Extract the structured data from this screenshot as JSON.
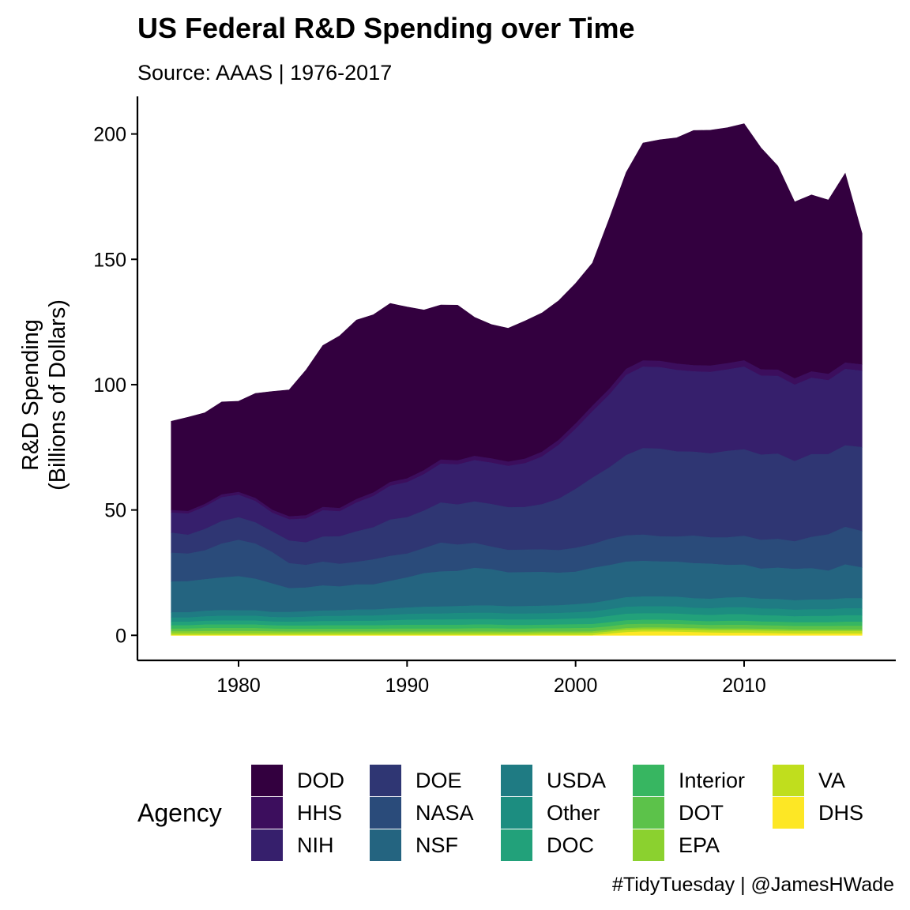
{
  "chart_data": {
    "type": "area",
    "stacked": true,
    "title": "US Federal R&D Spending over Time",
    "subtitle": "Source: AAAS | 1976-2017",
    "xlabel": "",
    "ylabel_lines": [
      "R&D Spending",
      "(Billions of Dollars)"
    ],
    "caption": "#TidyTuesday | @JamesHWade",
    "legend_title": "Agency",
    "legend_position": "bottom",
    "grid": false,
    "xlim": [
      1974.0,
      2019.0
    ],
    "ylim": [
      -10,
      215
    ],
    "x_ticks": [
      1980,
      1990,
      2000,
      2010
    ],
    "y_ticks": [
      0,
      50,
      100,
      150,
      200
    ],
    "x": [
      1976,
      1977,
      1978,
      1979,
      1980,
      1981,
      1982,
      1983,
      1984,
      1985,
      1986,
      1987,
      1988,
      1989,
      1990,
      1991,
      1992,
      1993,
      1994,
      1995,
      1996,
      1997,
      1998,
      1999,
      2000,
      2001,
      2002,
      2003,
      2004,
      2005,
      2006,
      2007,
      2008,
      2009,
      2010,
      2011,
      2012,
      2013,
      2014,
      2015,
      2016,
      2017
    ],
    "series": [
      {
        "name": "DOD",
        "color": "#33003F",
        "values": [
          35.5,
          37.5,
          36.5,
          37.0,
          36.3,
          41.8,
          47.3,
          50.5,
          58.0,
          64.5,
          68.8,
          71.5,
          71.0,
          71.3,
          68.5,
          64.0,
          61.8,
          62.0,
          55.4,
          53.5,
          53.3,
          55.0,
          55.5,
          55.6,
          56.0,
          57.0,
          68.0,
          78.5,
          86.8,
          88.3,
          90.2,
          93.7,
          94.0,
          94.0,
          94.5,
          88.5,
          81.3,
          70.5,
          70.5,
          69.5,
          75.6,
          52.3
        ]
      },
      {
        "name": "HHS",
        "color": "#3C0E5D",
        "values": [
          1.0,
          1.0,
          1.0,
          1.1,
          1.1,
          1.2,
          1.2,
          1.2,
          1.3,
          1.3,
          1.3,
          1.4,
          1.4,
          1.5,
          1.5,
          1.6,
          1.6,
          1.6,
          1.7,
          1.7,
          1.7,
          1.8,
          1.9,
          2.0,
          2.1,
          2.2,
          2.3,
          2.4,
          2.5,
          2.5,
          2.5,
          2.5,
          2.5,
          2.5,
          2.5,
          2.5,
          2.5,
          2.5,
          2.5,
          2.5,
          2.5,
          2.5
        ]
      },
      {
        "name": "NIH",
        "color": "#361F6C",
        "values": [
          8.0,
          8.5,
          9.0,
          9.5,
          9.0,
          8.5,
          7.5,
          8.5,
          9.5,
          10.5,
          10.0,
          11.5,
          12.5,
          13.5,
          14.0,
          14.5,
          15.5,
          16.0,
          16.5,
          16.5,
          16.5,
          17.5,
          19.0,
          21.5,
          24.0,
          26.5,
          29.0,
          32.0,
          32.5,
          32.5,
          32.5,
          32.0,
          32.5,
          32.5,
          33.0,
          31.5,
          31.0,
          30.5,
          30.5,
          29.5,
          30.5,
          30.5
        ]
      },
      {
        "name": "DOE",
        "color": "#2F3673",
        "values": [
          8.0,
          7.5,
          8.5,
          9.0,
          9.0,
          8.5,
          8.2,
          9.0,
          9.0,
          10.0,
          11.0,
          12.2,
          12.8,
          14.5,
          14.5,
          15.0,
          16.0,
          16.0,
          16.5,
          17.0,
          17.0,
          17.0,
          18.0,
          20.5,
          23.5,
          26.5,
          28.5,
          32.0,
          34.5,
          35.0,
          34.0,
          33.5,
          33.5,
          34.5,
          34.5,
          34.0,
          34.0,
          32.0,
          33.0,
          32.0,
          32.5,
          33.5
        ]
      },
      {
        "name": "NASA",
        "color": "#2A4B7A",
        "values": [
          11.5,
          11.0,
          11.5,
          13.5,
          14.5,
          14.0,
          12.5,
          10.0,
          9.0,
          9.5,
          9.0,
          9.0,
          10.0,
          10.0,
          9.5,
          10.0,
          11.5,
          10.5,
          10.0,
          9.0,
          9.0,
          9.0,
          9.0,
          9.0,
          9.5,
          9.5,
          10.5,
          10.5,
          10.5,
          10.0,
          10.0,
          11.0,
          10.5,
          11.0,
          11.5,
          11.5,
          11.5,
          11.0,
          12.5,
          14.5,
          15.0,
          14.5
        ]
      },
      {
        "name": "NSF",
        "color": "#246480",
        "values": [
          12.3,
          12.4,
          12.6,
          13.0,
          13.6,
          12.6,
          11.4,
          9.5,
          9.5,
          10.0,
          9.5,
          10.0,
          10.0,
          11.0,
          12.0,
          13.4,
          14.0,
          14.0,
          15.0,
          14.5,
          13.5,
          13.5,
          13.5,
          13.0,
          13.0,
          14.0,
          14.0,
          14.2,
          14.2,
          14.0,
          14.0,
          14.0,
          14.0,
          13.0,
          13.0,
          12.0,
          12.5,
          12.5,
          12.5,
          11.5,
          13.5,
          12.3
        ]
      },
      {
        "name": "USDA",
        "color": "#1F7B83",
        "values": [
          2.1,
          2.1,
          2.2,
          2.3,
          2.2,
          2.2,
          2.0,
          2.1,
          2.2,
          2.2,
          2.3,
          2.4,
          2.4,
          2.5,
          2.6,
          2.7,
          2.8,
          2.8,
          2.9,
          2.9,
          2.9,
          3.0,
          3.0,
          3.1,
          3.2,
          3.4,
          3.6,
          3.8,
          3.9,
          3.9,
          3.9,
          3.8,
          3.8,
          3.9,
          4.0,
          3.9,
          3.9,
          3.8,
          3.9,
          3.9,
          4.0,
          4.0
        ]
      },
      {
        "name": "Other",
        "color": "#1C8D80",
        "values": [
          1.7,
          1.7,
          1.8,
          1.9,
          1.9,
          1.9,
          1.8,
          1.8,
          1.9,
          2.0,
          2.0,
          2.1,
          2.1,
          2.2,
          2.3,
          2.4,
          2.4,
          2.5,
          2.5,
          2.5,
          2.4,
          2.4,
          2.4,
          2.4,
          2.5,
          2.6,
          2.7,
          2.8,
          2.8,
          2.8,
          2.8,
          2.7,
          2.7,
          2.8,
          2.8,
          2.7,
          2.7,
          2.6,
          2.7,
          2.7,
          2.8,
          2.8
        ]
      },
      {
        "name": "DOC",
        "color": "#22A17A",
        "values": [
          1.4,
          1.4,
          1.5,
          1.6,
          1.6,
          1.6,
          1.5,
          1.5,
          1.6,
          1.7,
          1.7,
          1.8,
          1.8,
          1.9,
          2.0,
          2.1,
          2.1,
          2.2,
          2.2,
          2.2,
          2.2,
          2.2,
          2.2,
          2.2,
          2.3,
          2.4,
          2.5,
          2.6,
          2.6,
          2.6,
          2.6,
          2.5,
          2.5,
          2.6,
          2.6,
          2.5,
          2.5,
          2.4,
          2.5,
          2.5,
          2.6,
          2.6
        ]
      },
      {
        "name": "Interior",
        "color": "#37B661",
        "values": [
          1.3,
          1.3,
          1.4,
          1.4,
          1.4,
          1.4,
          1.3,
          1.3,
          1.3,
          1.4,
          1.4,
          1.4,
          1.4,
          1.4,
          1.5,
          1.5,
          1.5,
          1.5,
          1.5,
          1.5,
          1.4,
          1.4,
          1.4,
          1.5,
          1.5,
          1.5,
          1.6,
          1.6,
          1.6,
          1.6,
          1.6,
          1.5,
          1.5,
          1.6,
          1.6,
          1.5,
          1.5,
          1.5,
          1.5,
          1.5,
          1.6,
          1.6
        ]
      },
      {
        "name": "DOT",
        "color": "#5CC24A",
        "values": [
          1.1,
          1.1,
          1.2,
          1.2,
          1.2,
          1.2,
          1.1,
          1.1,
          1.1,
          1.1,
          1.1,
          1.1,
          1.1,
          1.2,
          1.2,
          1.2,
          1.2,
          1.2,
          1.3,
          1.3,
          1.3,
          1.3,
          1.3,
          1.3,
          1.4,
          1.4,
          1.4,
          1.5,
          1.5,
          1.5,
          1.5,
          1.4,
          1.4,
          1.5,
          1.5,
          1.4,
          1.4,
          1.4,
          1.4,
          1.4,
          1.5,
          1.5
        ]
      },
      {
        "name": "EPA",
        "color": "#8BD12F",
        "values": [
          0.9,
          0.9,
          1.0,
          1.0,
          1.0,
          1.0,
          0.9,
          0.8,
          0.8,
          0.8,
          0.8,
          0.8,
          0.8,
          0.8,
          0.8,
          0.8,
          0.8,
          0.8,
          0.8,
          0.8,
          0.7,
          0.7,
          0.7,
          0.7,
          0.7,
          0.7,
          0.7,
          0.7,
          0.7,
          0.7,
          0.7,
          0.7,
          0.7,
          0.7,
          0.7,
          0.7,
          0.7,
          0.6,
          0.6,
          0.6,
          0.6,
          0.6
        ]
      },
      {
        "name": "VA",
        "color": "#C0DE1D",
        "values": [
          0.6,
          0.6,
          0.6,
          0.6,
          0.6,
          0.6,
          0.6,
          0.6,
          0.6,
          0.6,
          0.6,
          0.6,
          0.6,
          0.6,
          0.6,
          0.6,
          0.6,
          0.6,
          0.6,
          0.6,
          0.6,
          0.6,
          0.7,
          0.7,
          0.7,
          0.8,
          0.8,
          0.9,
          0.9,
          0.9,
          0.9,
          0.9,
          0.9,
          1.0,
          1.0,
          1.0,
          1.0,
          1.0,
          1.0,
          1.0,
          1.0,
          1.0
        ]
      },
      {
        "name": "DHS",
        "color": "#FDE725",
        "values": [
          0,
          0,
          0,
          0,
          0,
          0,
          0,
          0,
          0,
          0,
          0,
          0,
          0,
          0,
          0,
          0,
          0,
          0,
          0,
          0,
          0,
          0,
          0,
          0,
          0,
          0,
          0.6,
          1.2,
          1.4,
          1.4,
          1.3,
          1.2,
          1.0,
          0.9,
          0.9,
          0.8,
          0.7,
          0.6,
          0.6,
          0.6,
          0.6,
          0.6
        ]
      }
    ]
  }
}
